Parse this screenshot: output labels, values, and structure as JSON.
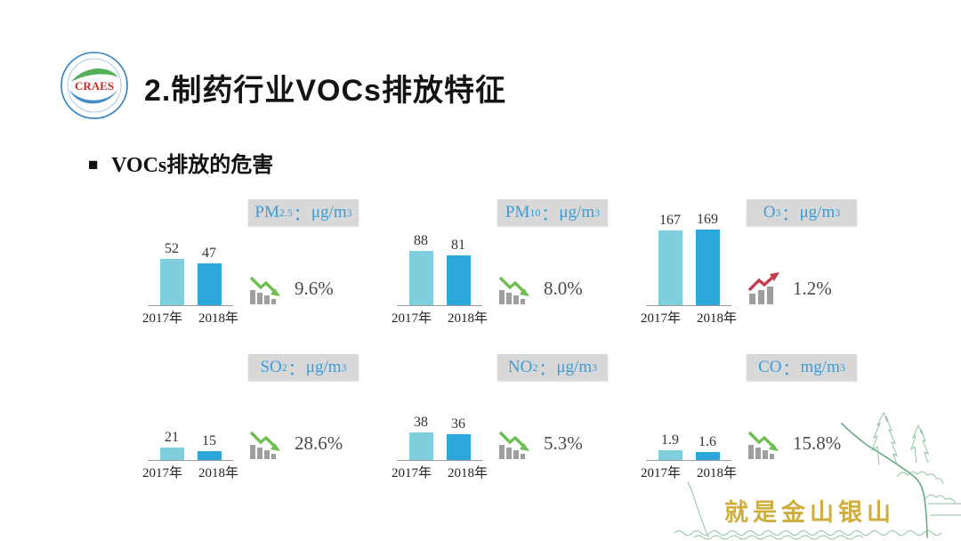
{
  "slide": {
    "title": "2.制药行业VOCs排放特征",
    "subtitle_bullet": "■",
    "subtitle": "VOCs排放的危害",
    "logo_text": "CRAES",
    "footer_slogan": "就是金山银山"
  },
  "colors": {
    "bar_2017": "#7fcedd",
    "bar_2018": "#2ba7db",
    "label_box_bg": "#d8d8d8",
    "label_text": "#3e9cd4",
    "trend_down": "#6ebe51",
    "trend_up": "#c53a4b",
    "trend_bars": "#9e9e9e",
    "slogan_text": "#cfae3e",
    "sketch_green": "#5fa97c"
  },
  "chart_data": [
    {
      "type": "bar",
      "title": "PM2.5：μg/m³",
      "label": {
        "base": "PM",
        "sub": "2.5",
        "sep": "：",
        "unit": "μg/m",
        "unit_sup": "3"
      },
      "categories": [
        "2017年",
        "2018年"
      ],
      "values": [
        52,
        47
      ],
      "ylim": [
        0,
        90
      ],
      "change": "9.6%",
      "trend": "down"
    },
    {
      "type": "bar",
      "title": "PM10：μg/m³",
      "label": {
        "base": "PM",
        "sub": "10",
        "sep": "：",
        "unit": "μg/m",
        "unit_sup": "3"
      },
      "categories": [
        "2017年",
        "2018年"
      ],
      "values": [
        88,
        81
      ],
      "ylim": [
        0,
        130
      ],
      "change": "8.0%",
      "trend": "down"
    },
    {
      "type": "bar",
      "title": "O3：μg/m³",
      "label": {
        "base": "O",
        "sub": "3",
        "sep": "：",
        "unit": "μg/m",
        "unit_sup": "3"
      },
      "categories": [
        "2017年",
        "2018年"
      ],
      "values": [
        167,
        169
      ],
      "ylim": [
        0,
        180
      ],
      "change": "1.2%",
      "trend": "up"
    },
    {
      "type": "bar",
      "title": "SO2：μg/m³",
      "label": {
        "base": "SO",
        "sub": "2",
        "sep": "：",
        "unit": "μg/m",
        "unit_sup": "3"
      },
      "categories": [
        "2017年",
        "2018年"
      ],
      "values": [
        21,
        15
      ],
      "ylim": [
        0,
        140
      ],
      "change": "28.6%",
      "trend": "down"
    },
    {
      "type": "bar",
      "title": "NO2：μg/m³",
      "label": {
        "base": "NO",
        "sub": "2",
        "sep": "：",
        "unit": "μg/m",
        "unit_sup": "3"
      },
      "categories": [
        "2017年",
        "2018年"
      ],
      "values": [
        38,
        36
      ],
      "ylim": [
        0,
        110
      ],
      "change": "5.3%",
      "trend": "down"
    },
    {
      "type": "bar",
      "title": "CO：mg/m³",
      "label": {
        "base": "CO",
        "sub": "",
        "sep": "：",
        "unit": "mg/m",
        "unit_sup": "3"
      },
      "categories": [
        "2017年",
        "2018年"
      ],
      "values": [
        1.9,
        1.6
      ],
      "ylim": [
        0,
        16
      ],
      "change": "15.8%",
      "trend": "down"
    }
  ]
}
